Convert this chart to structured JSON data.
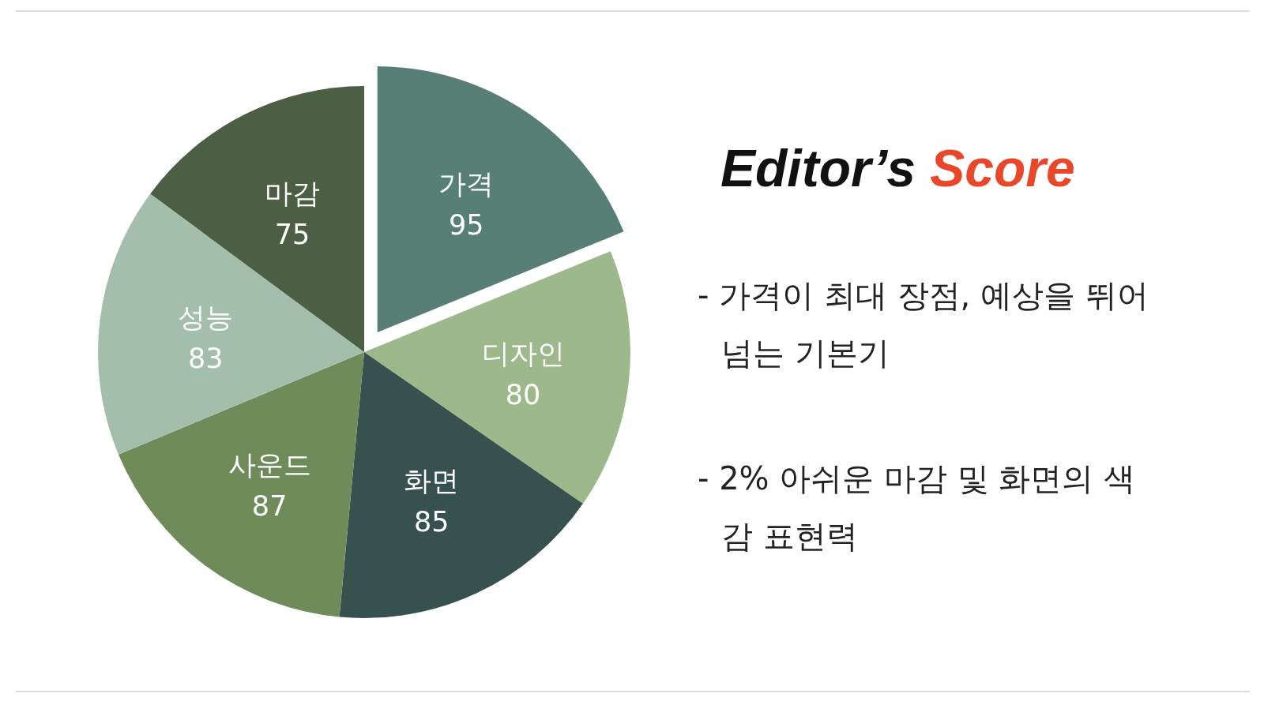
{
  "chart_data": {
    "type": "pie",
    "title": "Editor’s Score",
    "categories": [
      "가격",
      "디자인",
      "화면",
      "사운드",
      "성능",
      "마감"
    ],
    "values": [
      95,
      80,
      85,
      87,
      83,
      75
    ],
    "colors": [
      "#577f76",
      "#9db98b",
      "#37524e",
      "#6f8b5a",
      "#a3bfac",
      "#4c5e43"
    ],
    "data_labels": true,
    "annotations": [
      "- 가격이 최대 장점, 예상을 뛰어넘는 기본기",
      "- 2% 아쉬운 마감 및 화면의 색감 표현력"
    ]
  }
}
